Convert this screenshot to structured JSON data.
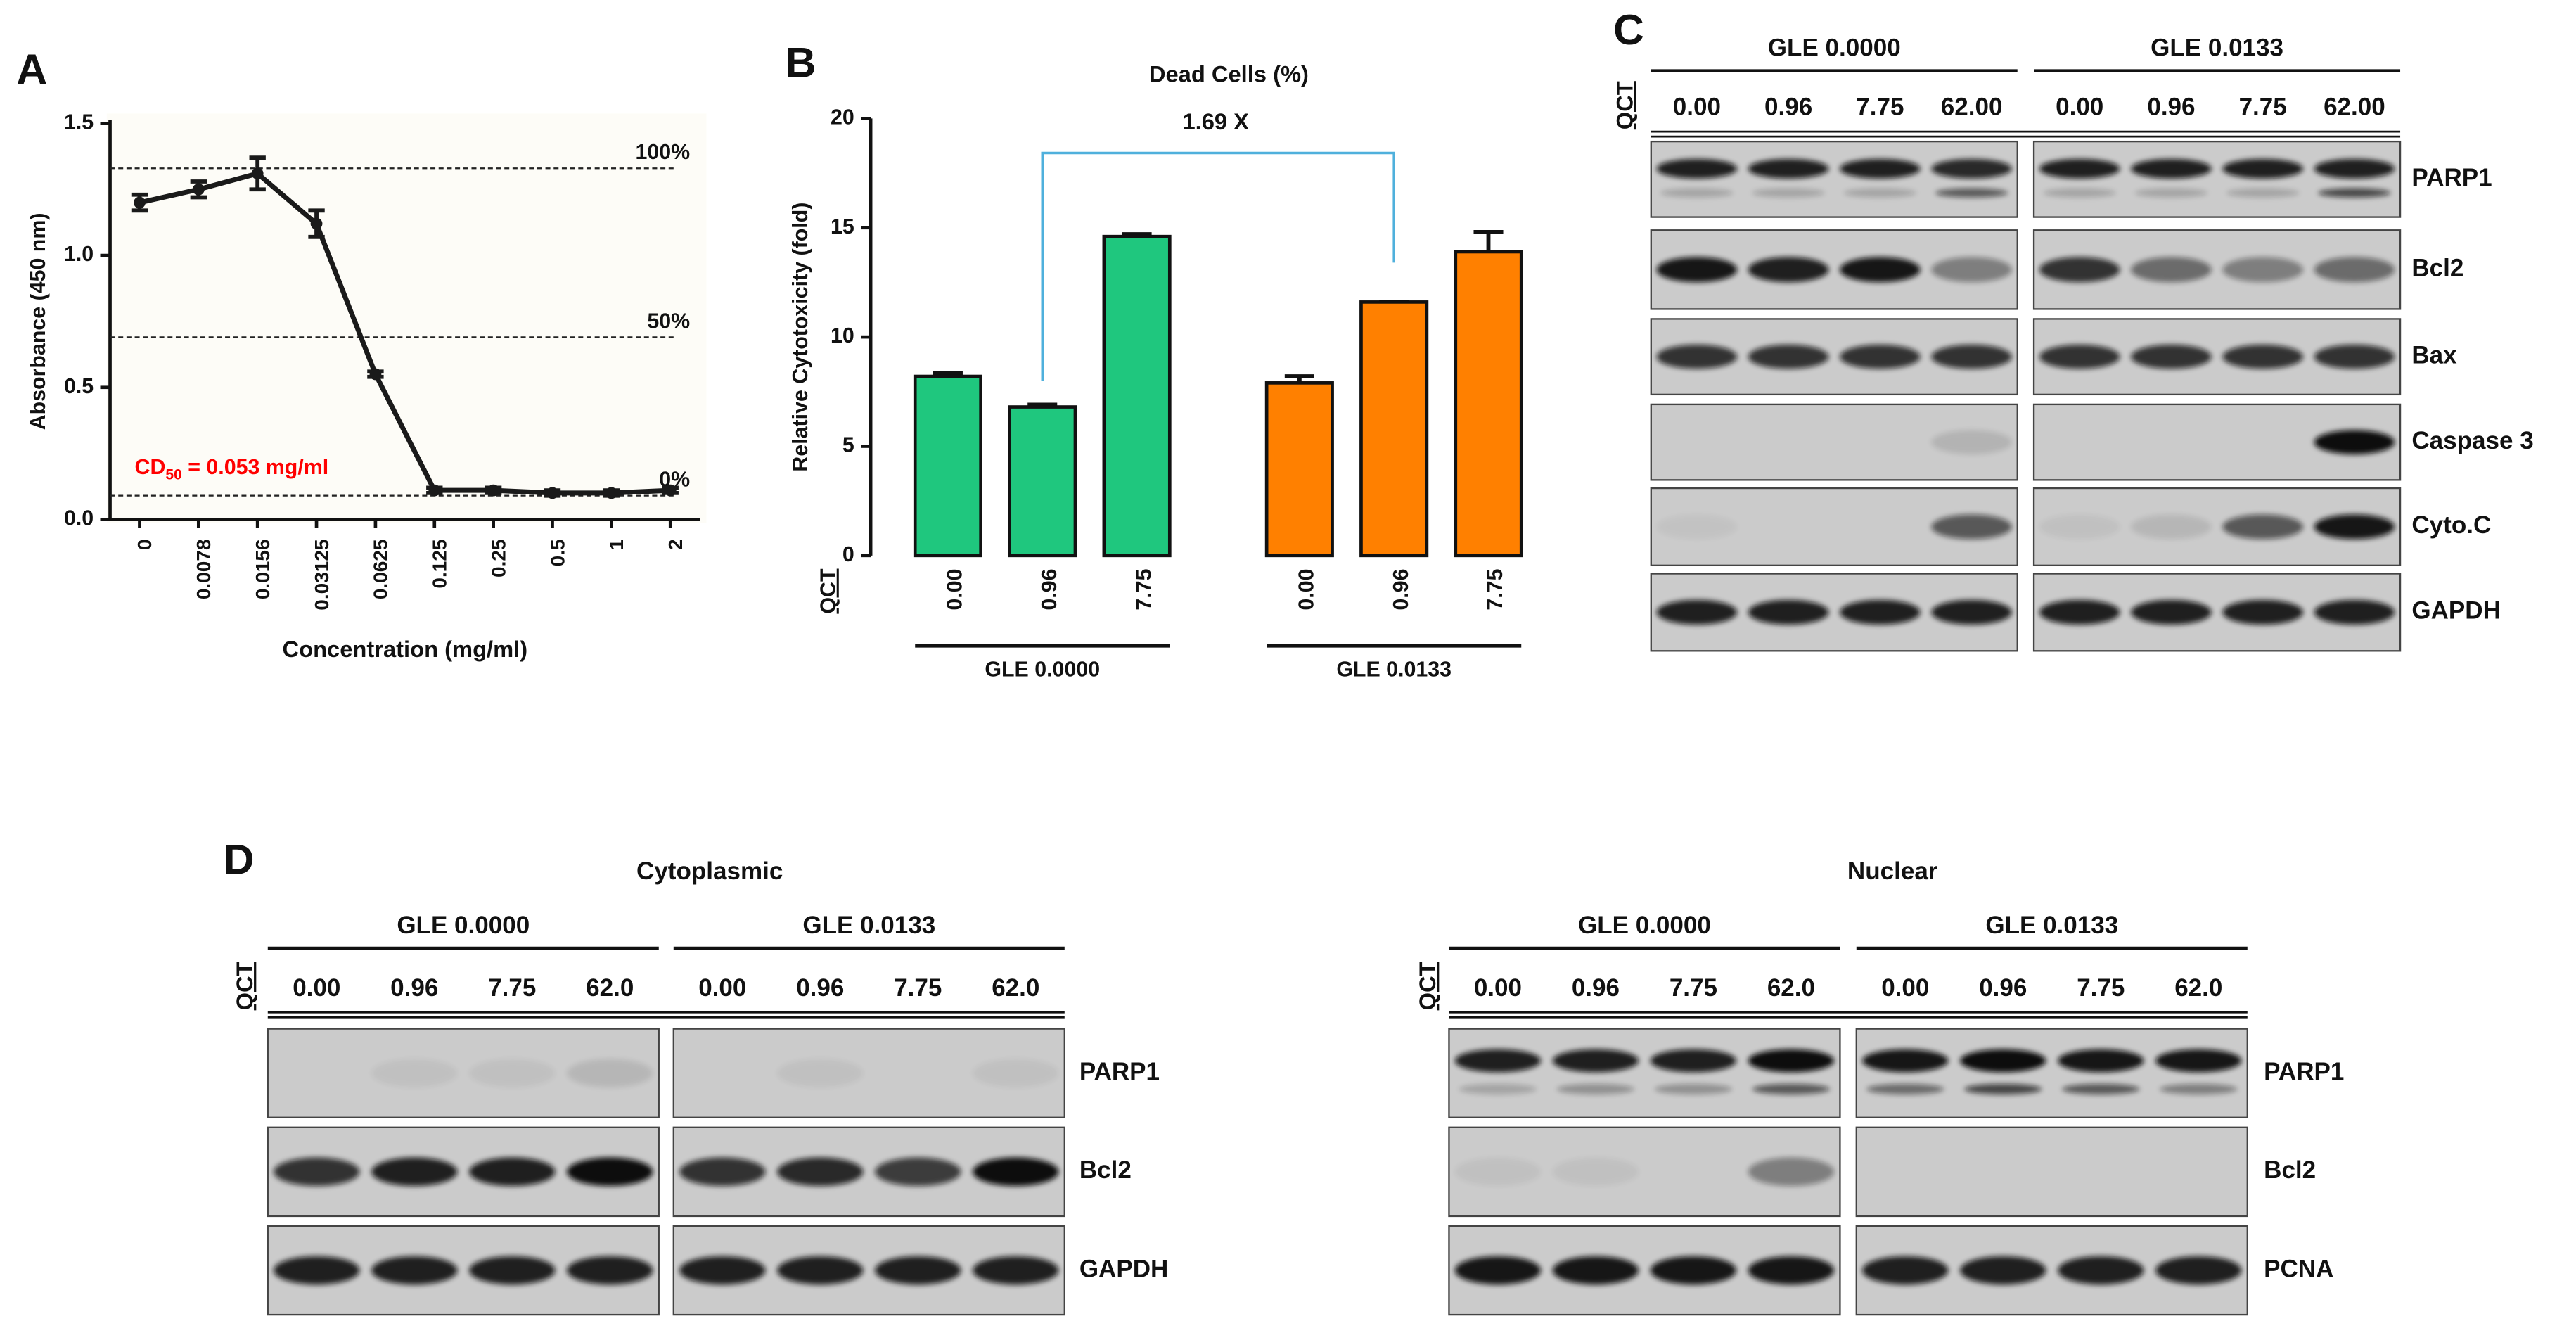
{
  "chart_data": [
    {
      "type": "line",
      "label": "A",
      "categories": [
        "0",
        "0.0078",
        "0.0156",
        "0.03125",
        "0.0625",
        "0.125",
        "0.25",
        "0.5",
        "1",
        "2"
      ],
      "values": [
        1.2,
        1.25,
        1.31,
        1.12,
        0.55,
        0.11,
        0.11,
        0.1,
        0.1,
        0.11
      ],
      "errors": [
        0.03,
        0.03,
        0.06,
        0.05,
        0.01,
        0.01,
        0.01,
        0.01,
        0.01,
        0.01
      ],
      "color": "#1a1a1a",
      "x_label": "Concentration (mg/ml)",
      "y_label": "Absorbance (450 nm)",
      "ylim": [
        0,
        1.5
      ],
      "yticks": [
        {
          "value": 0,
          "label": "0.0"
        },
        {
          "value": 0.5,
          "label": "0.5"
        },
        {
          "value": 1,
          "label": "1.0"
        },
        {
          "value": 1.5,
          "label": "1.5"
        }
      ],
      "reference_lines": [
        {
          "value": 1.33,
          "label": "100%"
        },
        {
          "value": 0.69,
          "label": "50%"
        },
        {
          "value": 0.09,
          "label": "0%"
        }
      ],
      "annotation": {
        "text": "CD",
        "subscript": "50",
        "suffix": " = 0.053 mg/ml",
        "color": "#ff0000"
      }
    },
    {
      "type": "bar",
      "label": "B",
      "title": "Dead Cells (%)",
      "annotation": "1.69 X",
      "category_label": "QCT",
      "categories": [
        "0.00",
        "0.96",
        "7.75",
        "0.00",
        "0.96",
        "7.75"
      ],
      "groups": [
        "GLE 0.0000",
        "GLE 0.0133"
      ],
      "values": [
        8.2,
        6.8,
        14.6,
        7.9,
        11.6,
        13.9
      ],
      "errors": [
        0.15,
        0.1,
        0.1,
        0.3,
        0,
        0.9
      ],
      "colors": [
        "#1fc77e",
        "#1fc77e",
        "#1fc77e",
        "#ff8000",
        "#ff8000",
        "#ff8000"
      ],
      "y_label": "Relative Cytotoxicity (fold)",
      "ylim": [
        0,
        20
      ],
      "yticks": [
        0,
        5,
        10,
        15,
        20
      ]
    }
  ],
  "blots": {
    "C": {
      "label": "C",
      "lane_label": "QCT",
      "groups": [
        {
          "name": "GLE 0.0000",
          "lanes": [
            "0.00",
            "0.96",
            "7.75",
            "62.00"
          ]
        },
        {
          "name": "GLE 0.0133",
          "lanes": [
            "0.00",
            "0.96",
            "7.75",
            "62.00"
          ]
        }
      ],
      "proteins": [
        "PARP1",
        "Bcl2",
        "Bax",
        "Caspase 3",
        "Cyto.C",
        "GAPDH"
      ]
    },
    "D": {
      "label": "D",
      "panels": [
        {
          "title": "Cytoplasmic",
          "lane_label": "QCT",
          "groups": [
            {
              "name": "GLE 0.0000",
              "lanes": [
                "0.00",
                "0.96",
                "7.75",
                "62.0"
              ]
            },
            {
              "name": "GLE 0.0133",
              "lanes": [
                "0.00",
                "0.96",
                "7.75",
                "62.0"
              ]
            }
          ],
          "proteins": [
            "PARP1",
            "Bcl2",
            "GAPDH"
          ]
        },
        {
          "title": "Nuclear",
          "lane_label": "QCT",
          "groups": [
            {
              "name": "GLE 0.0000",
              "lanes": [
                "0.00",
                "0.96",
                "7.75",
                "62.0"
              ]
            },
            {
              "name": "GLE 0.0133",
              "lanes": [
                "0.00",
                "0.96",
                "7.75",
                "62.0"
              ]
            }
          ],
          "proteins": [
            "PARP1",
            "Bcl2",
            "PCNA"
          ]
        }
      ]
    }
  }
}
